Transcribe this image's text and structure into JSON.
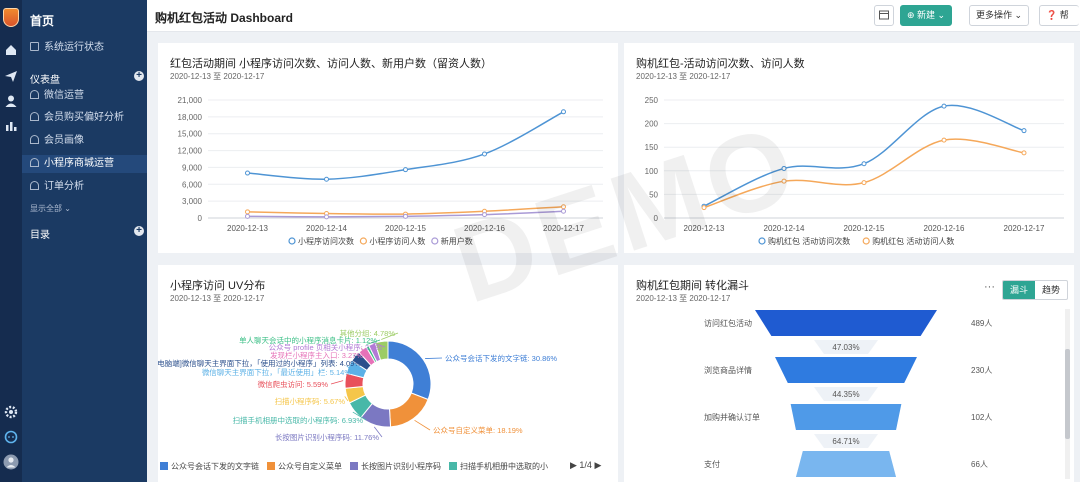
{
  "sidebar": {
    "home": "首页",
    "items": [
      {
        "label": "系统运行状态"
      },
      {
        "label": "微信运营"
      },
      {
        "label": "会员购买偏好分析"
      },
      {
        "label": "会员画像"
      },
      {
        "label": "小程序商城运营"
      },
      {
        "label": "订单分析"
      }
    ],
    "group_dashboard": "仪表盘",
    "show_all": "显示全部 ⌄",
    "group_catalog": "目录"
  },
  "header": {
    "title": "购机红包活动 Dashboard",
    "new_label": "新建 ⌄",
    "more_label": "更多操作 ⌄",
    "help_label": "帮"
  },
  "watermark": "DEMO",
  "cards": {
    "c1": {
      "title": "红包活动期间 小程序访问次数、访问人数、新用户数（留资人数）",
      "date": "2020-12-13 至 2020-12-17"
    },
    "c2": {
      "title": "购机红包-活动访问次数、访问人数",
      "date": "2020-12-13 至 2020-12-17"
    },
    "c3": {
      "title": "小程序访问 UV分布",
      "date": "2020-12-13 至 2020-12-17",
      "pager": "1/4"
    },
    "c4": {
      "title": "购机红包期间 转化漏斗",
      "date": "2020-12-13 至 2020-12-17",
      "tab_funnel": "漏斗",
      "tab_trend": "趋势",
      "dots": "···"
    }
  },
  "colors": {
    "blue": "#4e94d4",
    "orange": "#f5a85a",
    "purple": "#a99ad6",
    "accent": "#2ea593"
  },
  "chart_data": [
    {
      "type": "line",
      "x": [
        "2020-12-13",
        "2020-12-14",
        "2020-12-15",
        "2020-12-16",
        "2020-12-17"
      ],
      "ylim": [
        0,
        21000
      ],
      "yticks": [
        "0",
        "3,000",
        "6,000",
        "9,000",
        "12,000",
        "15,000",
        "18,000",
        "21,000"
      ],
      "series": [
        {
          "name": "小程序访问次数",
          "values": [
            8000,
            6900,
            8600,
            11400,
            18900
          ]
        },
        {
          "name": "小程序访问人数",
          "values": [
            1100,
            800,
            700,
            1200,
            2000
          ]
        },
        {
          "name": "新用户数",
          "values": [
            300,
            200,
            300,
            600,
            1200
          ]
        }
      ]
    },
    {
      "type": "line",
      "x": [
        "2020-12-13",
        "2020-12-14",
        "2020-12-15",
        "2020-12-16",
        "2020-12-17"
      ],
      "ylim": [
        0,
        250
      ],
      "yticks": [
        "0",
        "50",
        "100",
        "150",
        "200",
        "250"
      ],
      "series": [
        {
          "name": "购机红包 活动访问次数",
          "values": [
            25,
            105,
            115,
            237,
            185
          ]
        },
        {
          "name": "购机红包 活动访问人数",
          "values": [
            22,
            78,
            75,
            165,
            138
          ]
        }
      ]
    },
    {
      "type": "pie",
      "slices": [
        {
          "label": "公众号会话下发的文字链",
          "value": 30.86,
          "color": "#3f7fd6"
        },
        {
          "label": "公众号自定义菜单",
          "value": 18.19,
          "color": "#f0913a"
        },
        {
          "label": "长按图片识别小程序码",
          "value": 11.76,
          "color": "#7b78c2"
        },
        {
          "label": "扫描手机相册中选取的小程序码",
          "value": 6.93,
          "color": "#48b8a8"
        },
        {
          "label": "扫描小程序码",
          "value": 5.67,
          "color": "#f5c64a"
        },
        {
          "label": "微信爬虫访问",
          "value": 5.59,
          "color": "#e8505b"
        },
        {
          "label": "微信聊天主界面下拉，「最近使用」栏",
          "value": 5.14,
          "color": "#5bb0e6"
        },
        {
          "label": "[电脑端]微信聊天主界面下拉，「使用过的小程序」列表",
          "value": 4.09,
          "color": "#2b4f8c"
        },
        {
          "label": "发现栏小程序主入口",
          "value": 3.27,
          "color": "#e672b8"
        },
        {
          "label": "单人聊天会话中的小程序消息卡片",
          "value": 1.12,
          "color": "#3bbf86"
        },
        {
          "label": "其他",
          "value": 2.6,
          "color": "#b27ad6"
        },
        {
          "label": "其他分类",
          "value": 4.78,
          "color": "#9ccc65"
        }
      ],
      "pie_labels": [
        "公众号会话下发的文字链: 30.86%",
        "公众号自定义菜单: 18.19%",
        "长按图片识别小程序码: 11.76%",
        "扫描手机相册中选取的小程序码: 6.93%",
        "扫描小程序码: 5.67%",
        "微信爬虫访问: 5.59%",
        "微信聊天主界面下拉，「最近使用」栏: 5.14%",
        "[电脑端]微信聊天主界面下拉，「使用过的小程序」列表: 4.09%",
        "发现栏小程序主入口: 3.27%",
        "公众号 profile 页相关小程序: 2.6%",
        "单人聊天会话中的小程序消息卡片: 1.12%",
        "其他分组: 4.78%"
      ],
      "legend": [
        "公众号会话下发的文字链",
        "公众号自定义菜单",
        "长按图片识别小程序码",
        "扫描手机相册中选取的小"
      ]
    },
    {
      "type": "funnel",
      "stages": [
        {
          "label": "访问红包活动",
          "value": "489人",
          "rate": "47.03%"
        },
        {
          "label": "浏览商品详情",
          "value": "230人",
          "rate": "44.35%"
        },
        {
          "label": "加购并确认订单",
          "value": "102人",
          "rate": "64.71%"
        },
        {
          "label": "支付",
          "value": "66人"
        }
      ],
      "counts": [
        489,
        230,
        102,
        66
      ]
    }
  ]
}
